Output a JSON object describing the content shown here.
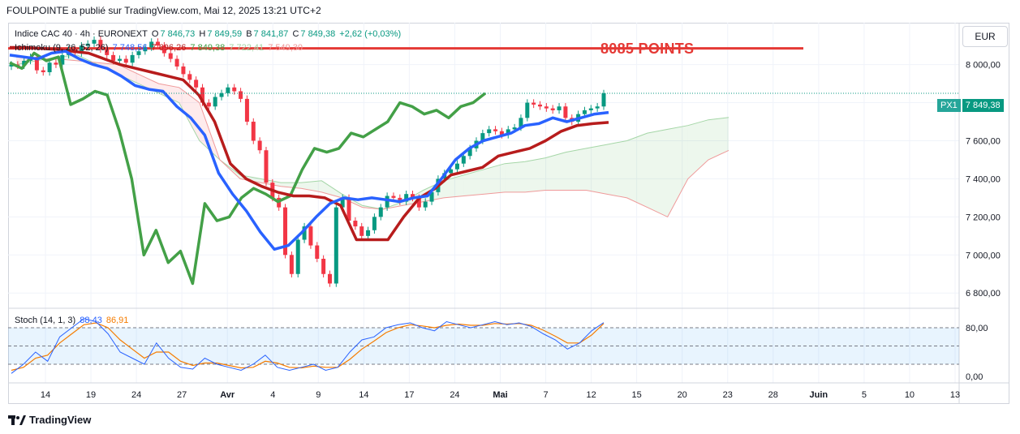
{
  "header": {
    "publisher_line": "FOULPOINTE a publié sur TradingView.com, Mai 12, 2025 13:21 UTC+2"
  },
  "legend": {
    "symbol": "Indice CAC 40 · 4h · EURONEXT",
    "o_label": "O",
    "o_value": "7 846,73",
    "h_label": "H",
    "h_value": "7 849,59",
    "b_label": "B",
    "b_value": "7 841,87",
    "c_label": "C",
    "c_value": "7 849,38",
    "change": "+2,62 (+0,03%)",
    "ichimoku_label": "Ichimoku (9, 26, 52, 26)",
    "ichimoku_values": [
      "7 748,56",
      "7 696,26",
      "7 849,38",
      "7 722,41",
      "7 549,30"
    ],
    "stoch_label": "Stoch (14, 1, 3)",
    "stoch_k": "88,43",
    "stoch_d": "86,91"
  },
  "currency": "EUR",
  "price_tag": {
    "label": "PX1",
    "value": "7 849,38"
  },
  "annotation": "8085 POINTS",
  "brand": "TradingView",
  "colors": {
    "up": "#089981",
    "down": "#f23645",
    "tenkan": "#2962ff",
    "kijun": "#b71c1c",
    "chikou": "#43a047",
    "span_a": "#a5d6a7",
    "span_b": "#ef9a9a",
    "target_line": "#e53935",
    "stoch_k": "#2962ff",
    "stoch_d": "#f57c00"
  },
  "chart_data": [
    {
      "type": "candlestick",
      "title": "Indice CAC 40 · 4h · EURONEXT",
      "y_ticks": [
        "8 000,00",
        "7 800,00",
        "7 600,00",
        "7 400,00",
        "7 200,00",
        "7 000,00",
        "6 800,00"
      ],
      "y_tick_values": [
        8000,
        7800,
        7600,
        7400,
        7200,
        7000,
        6800
      ],
      "ylim": [
        6720,
        8220
      ],
      "x_ticks": [
        "14",
        "19",
        "24",
        "27",
        "Avr",
        "4",
        "9",
        "14",
        "17",
        "24",
        "Mai",
        "7",
        "12",
        "15",
        "20",
        "23",
        "28",
        "Juin",
        "5",
        "10",
        "13"
      ],
      "horizontal_line": {
        "value": 8085,
        "label": "8085 POINTS"
      },
      "last_close": 7849.38,
      "closes": [
        8000,
        7995,
        8020,
        8040,
        7970,
        7960,
        8010,
        8000,
        8050,
        8080,
        8060,
        8100,
        8110,
        8130,
        8080,
        8050,
        8020,
        8030,
        8010,
        8050,
        8070,
        8090,
        8120,
        8100,
        8060,
        8030,
        7990,
        7950,
        7920,
        7880,
        7800,
        7780,
        7830,
        7850,
        7880,
        7860,
        7820,
        7700,
        7600,
        7550,
        7380,
        7300,
        7250,
        7000,
        6900,
        7080,
        7150,
        7050,
        6980,
        6900,
        6850,
        7250,
        7300,
        7180,
        7150,
        7100,
        7130,
        7200,
        7250,
        7310,
        7300,
        7280,
        7320,
        7300,
        7250,
        7280,
        7330,
        7400,
        7430,
        7450,
        7480,
        7520,
        7560,
        7600,
        7640,
        7660,
        7650,
        7630,
        7660,
        7670,
        7720,
        7800,
        7790,
        7780,
        7770,
        7760,
        7780,
        7720,
        7700,
        7740,
        7760,
        7770,
        7780,
        7849.38
      ],
      "tenkan": [
        8050,
        8040,
        8030,
        8060,
        8070,
        8030,
        8000,
        7980,
        7940,
        7890,
        7870,
        7860,
        7780,
        7720,
        7630,
        7430,
        7320,
        7230,
        7120,
        7030,
        7050,
        7120,
        7200,
        7270,
        7300,
        7290,
        7300,
        7290,
        7280,
        7300,
        7310,
        7400,
        7500,
        7560,
        7600,
        7620,
        7640,
        7680,
        7690,
        7720,
        7700,
        7720,
        7740,
        7748.56
      ],
      "kijun": [
        8090,
        8090,
        8085,
        8080,
        8070,
        8060,
        8030,
        8000,
        7980,
        7960,
        7940,
        7920,
        7840,
        7700,
        7480,
        7400,
        7360,
        7330,
        7310,
        7310,
        7300,
        7260,
        7080,
        7080,
        7080,
        7200,
        7300,
        7350,
        7420,
        7440,
        7460,
        7520,
        7540,
        7560,
        7600,
        7650,
        7680,
        7690,
        7696.26
      ],
      "chikou": [
        8010,
        7980,
        8060,
        8020,
        8040,
        7790,
        7820,
        7860,
        7840,
        7650,
        7400,
        7000,
        7130,
        6960,
        7020,
        6850,
        7270,
        7180,
        7200,
        7300,
        7350,
        7320,
        7280,
        7310,
        7450,
        7560,
        7540,
        7560,
        7640,
        7620,
        7660,
        7700,
        7800,
        7780,
        7740,
        7760,
        7720,
        7780,
        7800,
        7849.38
      ],
      "span_a": [
        8000,
        8020,
        8040,
        8050,
        8000,
        7950,
        7900,
        7850,
        7800,
        7600,
        7500,
        7420,
        7400,
        7380,
        7380,
        7390,
        7320,
        7260,
        7240,
        7280,
        7340,
        7390,
        7420,
        7450,
        7480,
        7490,
        7510,
        7540,
        7560,
        7580,
        7600,
        7640,
        7660,
        7680,
        7710,
        7722.41
      ],
      "span_b": [
        8040,
        8030,
        8030,
        8020,
        8010,
        8000,
        7950,
        7900,
        7880,
        7800,
        7500,
        7400,
        7380,
        7360,
        7350,
        7330,
        7300,
        7250,
        7240,
        7260,
        7280,
        7300,
        7310,
        7320,
        7330,
        7330,
        7340,
        7340,
        7340,
        7320,
        7300,
        7250,
        7200,
        7400,
        7500,
        7549.3
      ]
    },
    {
      "type": "line",
      "title": "Stoch (14, 1, 3)",
      "y_ticks": [
        "80,00",
        "0,00"
      ],
      "y_tick_values": [
        80,
        0
      ],
      "ylim": [
        -8,
        108
      ],
      "band": [
        20,
        80
      ],
      "series": [
        {
          "name": "%K",
          "values": [
            5,
            20,
            40,
            25,
            65,
            80,
            95,
            90,
            70,
            40,
            30,
            20,
            55,
            30,
            15,
            12,
            30,
            20,
            15,
            10,
            20,
            35,
            15,
            10,
            15,
            20,
            10,
            15,
            40,
            60,
            65,
            80,
            85,
            88,
            80,
            75,
            90,
            85,
            80,
            85,
            90,
            85,
            88,
            82,
            70,
            60,
            45,
            55,
            75,
            88.43
          ]
        },
        {
          "name": "%D",
          "values": [
            10,
            15,
            30,
            35,
            55,
            70,
            85,
            88,
            80,
            60,
            45,
            30,
            40,
            40,
            25,
            18,
            22,
            22,
            18,
            14,
            15,
            25,
            22,
            15,
            14,
            17,
            15,
            15,
            28,
            45,
            58,
            72,
            80,
            85,
            83,
            80,
            84,
            86,
            84,
            84,
            87,
            86,
            87,
            84,
            76,
            66,
            55,
            55,
            68,
            86.91
          ]
        }
      ]
    }
  ]
}
